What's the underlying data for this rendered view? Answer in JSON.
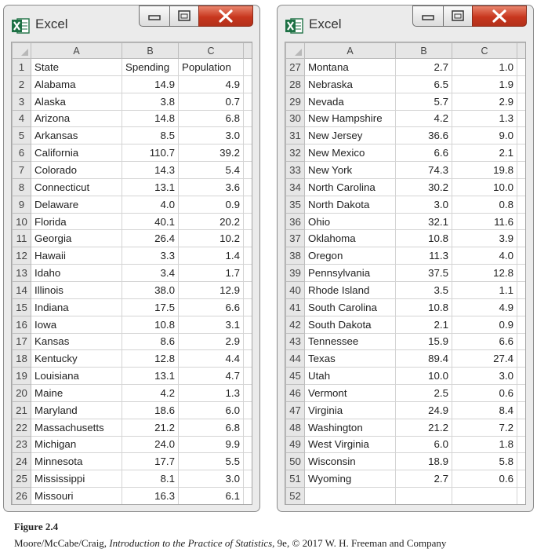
{
  "windows": [
    {
      "title": "Excel",
      "columns": [
        "A",
        "B",
        "C"
      ],
      "rows": [
        {
          "num": "1",
          "a": "State",
          "b": "Spending",
          "c": "Population",
          "header": true
        },
        {
          "num": "2",
          "a": "Alabama",
          "b": "14.9",
          "c": "4.9"
        },
        {
          "num": "3",
          "a": "Alaska",
          "b": "3.8",
          "c": "0.7"
        },
        {
          "num": "4",
          "a": "Arizona",
          "b": "14.8",
          "c": "6.8"
        },
        {
          "num": "5",
          "a": "Arkansas",
          "b": "8.5",
          "c": "3.0"
        },
        {
          "num": "6",
          "a": "California",
          "b": "110.7",
          "c": "39.2"
        },
        {
          "num": "7",
          "a": "Colorado",
          "b": "14.3",
          "c": "5.4"
        },
        {
          "num": "8",
          "a": "Connecticut",
          "b": "13.1",
          "c": "3.6"
        },
        {
          "num": "9",
          "a": "Delaware",
          "b": "4.0",
          "c": "0.9"
        },
        {
          "num": "10",
          "a": "Florida",
          "b": "40.1",
          "c": "20.2"
        },
        {
          "num": "11",
          "a": "Georgia",
          "b": "26.4",
          "c": "10.2"
        },
        {
          "num": "12",
          "a": "Hawaii",
          "b": "3.3",
          "c": "1.4"
        },
        {
          "num": "13",
          "a": "Idaho",
          "b": "3.4",
          "c": "1.7"
        },
        {
          "num": "14",
          "a": "Illinois",
          "b": "38.0",
          "c": "12.9"
        },
        {
          "num": "15",
          "a": "Indiana",
          "b": "17.5",
          "c": "6.6"
        },
        {
          "num": "16",
          "a": "Iowa",
          "b": "10.8",
          "c": "3.1"
        },
        {
          "num": "17",
          "a": "Kansas",
          "b": "8.6",
          "c": "2.9"
        },
        {
          "num": "18",
          "a": "Kentucky",
          "b": "12.8",
          "c": "4.4"
        },
        {
          "num": "19",
          "a": "Louisiana",
          "b": "13.1",
          "c": "4.7"
        },
        {
          "num": "20",
          "a": "Maine",
          "b": "4.2",
          "c": "1.3"
        },
        {
          "num": "21",
          "a": "Maryland",
          "b": "18.6",
          "c": "6.0"
        },
        {
          "num": "22",
          "a": "Massachusetts",
          "b": "21.2",
          "c": "6.8"
        },
        {
          "num": "23",
          "a": "Michigan",
          "b": "24.0",
          "c": "9.9"
        },
        {
          "num": "24",
          "a": "Minnesota",
          "b": "17.7",
          "c": "5.5"
        },
        {
          "num": "25",
          "a": "Mississippi",
          "b": "8.1",
          "c": "3.0"
        },
        {
          "num": "26",
          "a": "Missouri",
          "b": "16.3",
          "c": "6.1"
        }
      ]
    },
    {
      "title": "Excel",
      "columns": [
        "A",
        "B",
        "C"
      ],
      "rows": [
        {
          "num": "27",
          "a": "Montana",
          "b": "2.7",
          "c": "1.0"
        },
        {
          "num": "28",
          "a": "Nebraska",
          "b": "6.5",
          "c": "1.9"
        },
        {
          "num": "29",
          "a": "Nevada",
          "b": "5.7",
          "c": "2.9"
        },
        {
          "num": "30",
          "a": "New Hampshire",
          "b": "4.2",
          "c": "1.3"
        },
        {
          "num": "31",
          "a": "New Jersey",
          "b": "36.6",
          "c": "9.0"
        },
        {
          "num": "32",
          "a": "New Mexico",
          "b": "6.6",
          "c": "2.1"
        },
        {
          "num": "33",
          "a": "New York",
          "b": "74.3",
          "c": "19.8"
        },
        {
          "num": "34",
          "a": "North Carolina",
          "b": "30.2",
          "c": "10.0"
        },
        {
          "num": "35",
          "a": "North Dakota",
          "b": "3.0",
          "c": "0.8"
        },
        {
          "num": "36",
          "a": "Ohio",
          "b": "32.1",
          "c": "11.6"
        },
        {
          "num": "37",
          "a": "Oklahoma",
          "b": "10.8",
          "c": "3.9"
        },
        {
          "num": "38",
          "a": "Oregon",
          "b": "11.3",
          "c": "4.0"
        },
        {
          "num": "39",
          "a": "Pennsylvania",
          "b": "37.5",
          "c": "12.8"
        },
        {
          "num": "40",
          "a": "Rhode Island",
          "b": "3.5",
          "c": "1.1"
        },
        {
          "num": "41",
          "a": "South Carolina",
          "b": "10.8",
          "c": "4.9"
        },
        {
          "num": "42",
          "a": "South Dakota",
          "b": "2.1",
          "c": "0.9"
        },
        {
          "num": "43",
          "a": "Tennessee",
          "b": "15.9",
          "c": "6.6"
        },
        {
          "num": "44",
          "a": "Texas",
          "b": "89.4",
          "c": "27.4"
        },
        {
          "num": "45",
          "a": "Utah",
          "b": "10.0",
          "c": "3.0"
        },
        {
          "num": "46",
          "a": "Vermont",
          "b": "2.5",
          "c": "0.6"
        },
        {
          "num": "47",
          "a": "Virginia",
          "b": "24.9",
          "c": "8.4"
        },
        {
          "num": "48",
          "a": "Washington",
          "b": "21.2",
          "c": "7.2"
        },
        {
          "num": "49",
          "a": "West Virginia",
          "b": "6.0",
          "c": "1.8"
        },
        {
          "num": "50",
          "a": "Wisconsin",
          "b": "18.9",
          "c": "5.8"
        },
        {
          "num": "51",
          "a": "Wyoming",
          "b": "2.7",
          "c": "0.6"
        },
        {
          "num": "52",
          "a": "",
          "b": "",
          "c": ""
        }
      ]
    }
  ],
  "caption": {
    "figure": "Figure 2.4",
    "credit_prefix": "Moore/McCabe/Craig, ",
    "credit_book": "Introduction to the Practice of Statistics",
    "credit_suffix": ", 9e, © 2017 W. H. Freeman and Company"
  },
  "colors": {
    "close_button": "#c8371e",
    "excel_green": "#1e7145",
    "header_gray": "#e6e6e6"
  },
  "icons": {
    "app": "excel-icon",
    "minimize": "minimize-icon",
    "maximize": "maximize-icon",
    "close": "close-icon"
  }
}
